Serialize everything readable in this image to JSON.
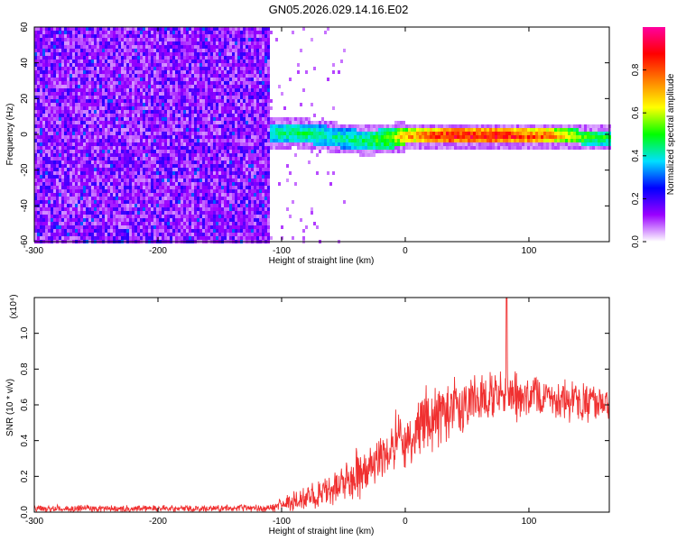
{
  "title": "GN05.2026.029.14.16.E02",
  "chart_data": [
    {
      "type": "heatmap",
      "name": "spectrogram",
      "xlabel": "Height of straight line (km)",
      "ylabel": "Frequency (Hz)",
      "xlim": [
        -300,
        165
      ],
      "ylim": [
        -60,
        60
      ],
      "xticks": [
        -300,
        -200,
        -100,
        0,
        100
      ],
      "xtick_labels": [
        "-300",
        "-200",
        "-100",
        "0",
        "100"
      ],
      "yticks": [
        -60,
        -40,
        -20,
        0,
        20,
        40,
        60
      ],
      "ytick_labels": [
        "-60",
        "-40",
        "-20",
        "0",
        "20",
        "40",
        "60"
      ],
      "colorbar": {
        "label": "Normalized spectral amplitude",
        "range": [
          0,
          1
        ],
        "ticks": [
          0.0,
          0.2,
          0.4,
          0.6,
          0.8
        ],
        "tick_labels": [
          "0.0",
          "0.2",
          "0.4",
          "0.6",
          "0.8"
        ],
        "colors": [
          "#ffffff",
          "#9a00ff",
          "#0000ff",
          "#00e0ff",
          "#00ff00",
          "#ffff00",
          "#ff8000",
          "#ff0000",
          "#ff00a0"
        ]
      },
      "noise_region_x": [
        -300,
        -110
      ],
      "signal_band": [
        {
          "x": -110,
          "f": 1.5,
          "amp": 0.45
        },
        {
          "x": -90,
          "f": 2.0,
          "amp": 0.5
        },
        {
          "x": -70,
          "f": 0.5,
          "amp": 0.45
        },
        {
          "x": -50,
          "f": -1.5,
          "amp": 0.45
        },
        {
          "x": -30,
          "f": -2.5,
          "amp": 0.5
        },
        {
          "x": -10,
          "f": -1.0,
          "amp": 0.6
        },
        {
          "x": 0,
          "f": 0.0,
          "amp": 0.75
        },
        {
          "x": 30,
          "f": 0.0,
          "amp": 0.95
        },
        {
          "x": 70,
          "f": 0.0,
          "amp": 0.95
        },
        {
          "x": 110,
          "f": 0.0,
          "amp": 0.85
        },
        {
          "x": 140,
          "f": -0.5,
          "amp": 0.6
        },
        {
          "x": 165,
          "f": -1.0,
          "amp": 0.5
        }
      ]
    },
    {
      "type": "line",
      "name": "snr",
      "xlabel": "Height of straight line (km)",
      "ylabel": "SNR (10 * v/v)",
      "scale_label": "(x10⁴)",
      "xlim": [
        -300,
        165
      ],
      "ylim": [
        0,
        1.2
      ],
      "xticks": [
        -300,
        -200,
        -100,
        0,
        100
      ],
      "xtick_labels": [
        "-300",
        "-200",
        "-100",
        "0",
        "100"
      ],
      "yticks": [
        0.0,
        0.2,
        0.4,
        0.6,
        0.8,
        1.0
      ],
      "ytick_labels": [
        "0.0",
        "0.2",
        "0.4",
        "0.6",
        "0.8",
        "1.0"
      ],
      "color": "#f03030",
      "envelope": [
        {
          "x": -300,
          "mean": 0.02,
          "spread": 0.02
        },
        {
          "x": -110,
          "mean": 0.02,
          "spread": 0.02
        },
        {
          "x": -100,
          "mean": 0.04,
          "spread": 0.04
        },
        {
          "x": -80,
          "mean": 0.08,
          "spread": 0.08
        },
        {
          "x": -60,
          "mean": 0.13,
          "spread": 0.1
        },
        {
          "x": -40,
          "mean": 0.2,
          "spread": 0.14
        },
        {
          "x": -20,
          "mean": 0.3,
          "spread": 0.16
        },
        {
          "x": 0,
          "mean": 0.42,
          "spread": 0.18
        },
        {
          "x": 20,
          "mean": 0.52,
          "spread": 0.18
        },
        {
          "x": 40,
          "mean": 0.6,
          "spread": 0.16
        },
        {
          "x": 60,
          "mean": 0.64,
          "spread": 0.14
        },
        {
          "x": 80,
          "mean": 0.66,
          "spread": 0.14
        },
        {
          "x": 100,
          "mean": 0.64,
          "spread": 0.12
        },
        {
          "x": 120,
          "mean": 0.63,
          "spread": 0.12
        },
        {
          "x": 140,
          "mean": 0.62,
          "spread": 0.12
        },
        {
          "x": 165,
          "mean": 0.6,
          "spread": 0.12
        }
      ],
      "peak": {
        "x": 82,
        "y": 1.2
      }
    }
  ]
}
